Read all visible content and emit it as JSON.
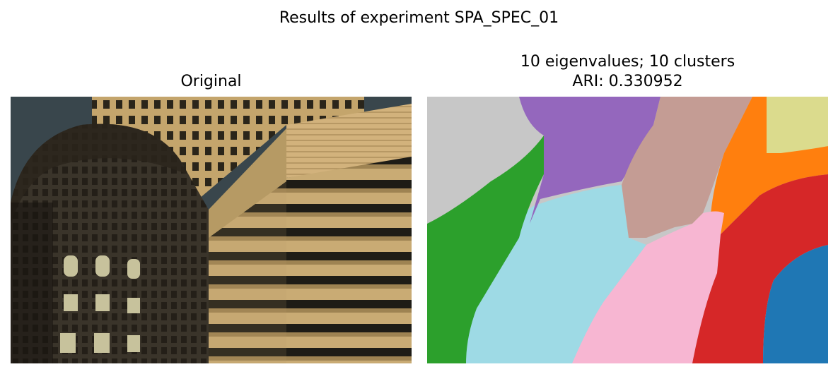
{
  "figure": {
    "suptitle": "Results of experiment SPA_SPEC_01"
  },
  "panels": {
    "original": {
      "title": "Original"
    },
    "segmentation": {
      "title_line1": "10 eigenvalues; 10 clusters",
      "title_line2": "ARI: 0.330952"
    }
  },
  "colors": {
    "sky": "#3b4c55",
    "building_dark": "#2b2620",
    "building_mid": "#4a4134",
    "tan_light": "#c9a972",
    "tan_mid": "#a98c58",
    "window_dark": "#1c1a14",
    "clusters": [
      "#1f77b4",
      "#ff7f0e",
      "#2ca02c",
      "#d62728",
      "#9467bd",
      "#c49c94",
      "#f7b6d2",
      "#c7c7c7",
      "#dbdb8d",
      "#9edae5"
    ]
  }
}
